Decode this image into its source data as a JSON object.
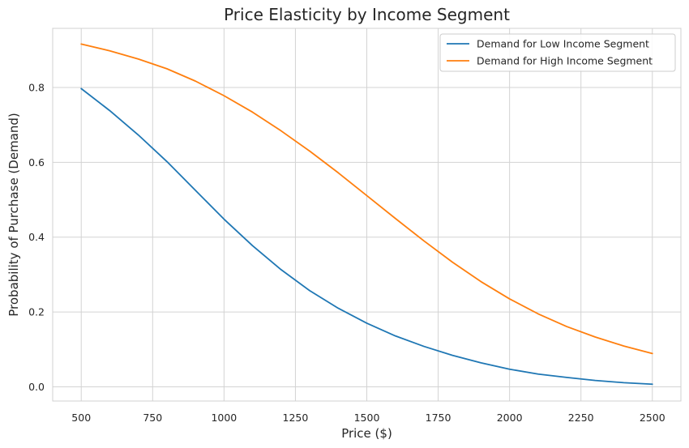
{
  "chart_data": {
    "type": "line",
    "title": "Price Elasticity by Income Segment",
    "xlabel": "Price ($)",
    "ylabel": "Probability of Purchase (Demand)",
    "xlim": [
      400,
      2600
    ],
    "ylim": [
      -0.038,
      0.958
    ],
    "xticks": [
      500,
      750,
      1000,
      1250,
      1500,
      1750,
      2000,
      2250,
      2500
    ],
    "xtick_labels": [
      "500",
      "750",
      "1000",
      "1250",
      "1500",
      "1750",
      "2000",
      "2250",
      "2500"
    ],
    "yticks": [
      0.0,
      0.2,
      0.4,
      0.6,
      0.8
    ],
    "ytick_labels": [
      "0.0",
      "0.2",
      "0.4",
      "0.6",
      "0.8"
    ],
    "grid": true,
    "legend_position": "top-right",
    "x": [
      500,
      600,
      700,
      800,
      900,
      1000,
      1100,
      1200,
      1300,
      1400,
      1500,
      1600,
      1700,
      1800,
      1900,
      2000,
      2100,
      2200,
      2300,
      2400,
      2500
    ],
    "series": [
      {
        "name": "Demand for Low Income Segment",
        "color": "#1f77b4",
        "values": [
          0.797,
          0.738,
          0.673,
          0.602,
          0.525,
          0.448,
          0.377,
          0.313,
          0.257,
          0.21,
          0.17,
          0.136,
          0.108,
          0.084,
          0.064,
          0.047,
          0.034,
          0.025,
          0.017,
          0.011,
          0.007
        ]
      },
      {
        "name": "Demand for High Income Segment",
        "color": "#ff7f0e",
        "values": [
          0.916,
          0.898,
          0.876,
          0.85,
          0.817,
          0.778,
          0.734,
          0.684,
          0.63,
          0.572,
          0.511,
          0.45,
          0.39,
          0.333,
          0.281,
          0.235,
          0.195,
          0.161,
          0.133,
          0.109,
          0.089
        ]
      }
    ]
  }
}
